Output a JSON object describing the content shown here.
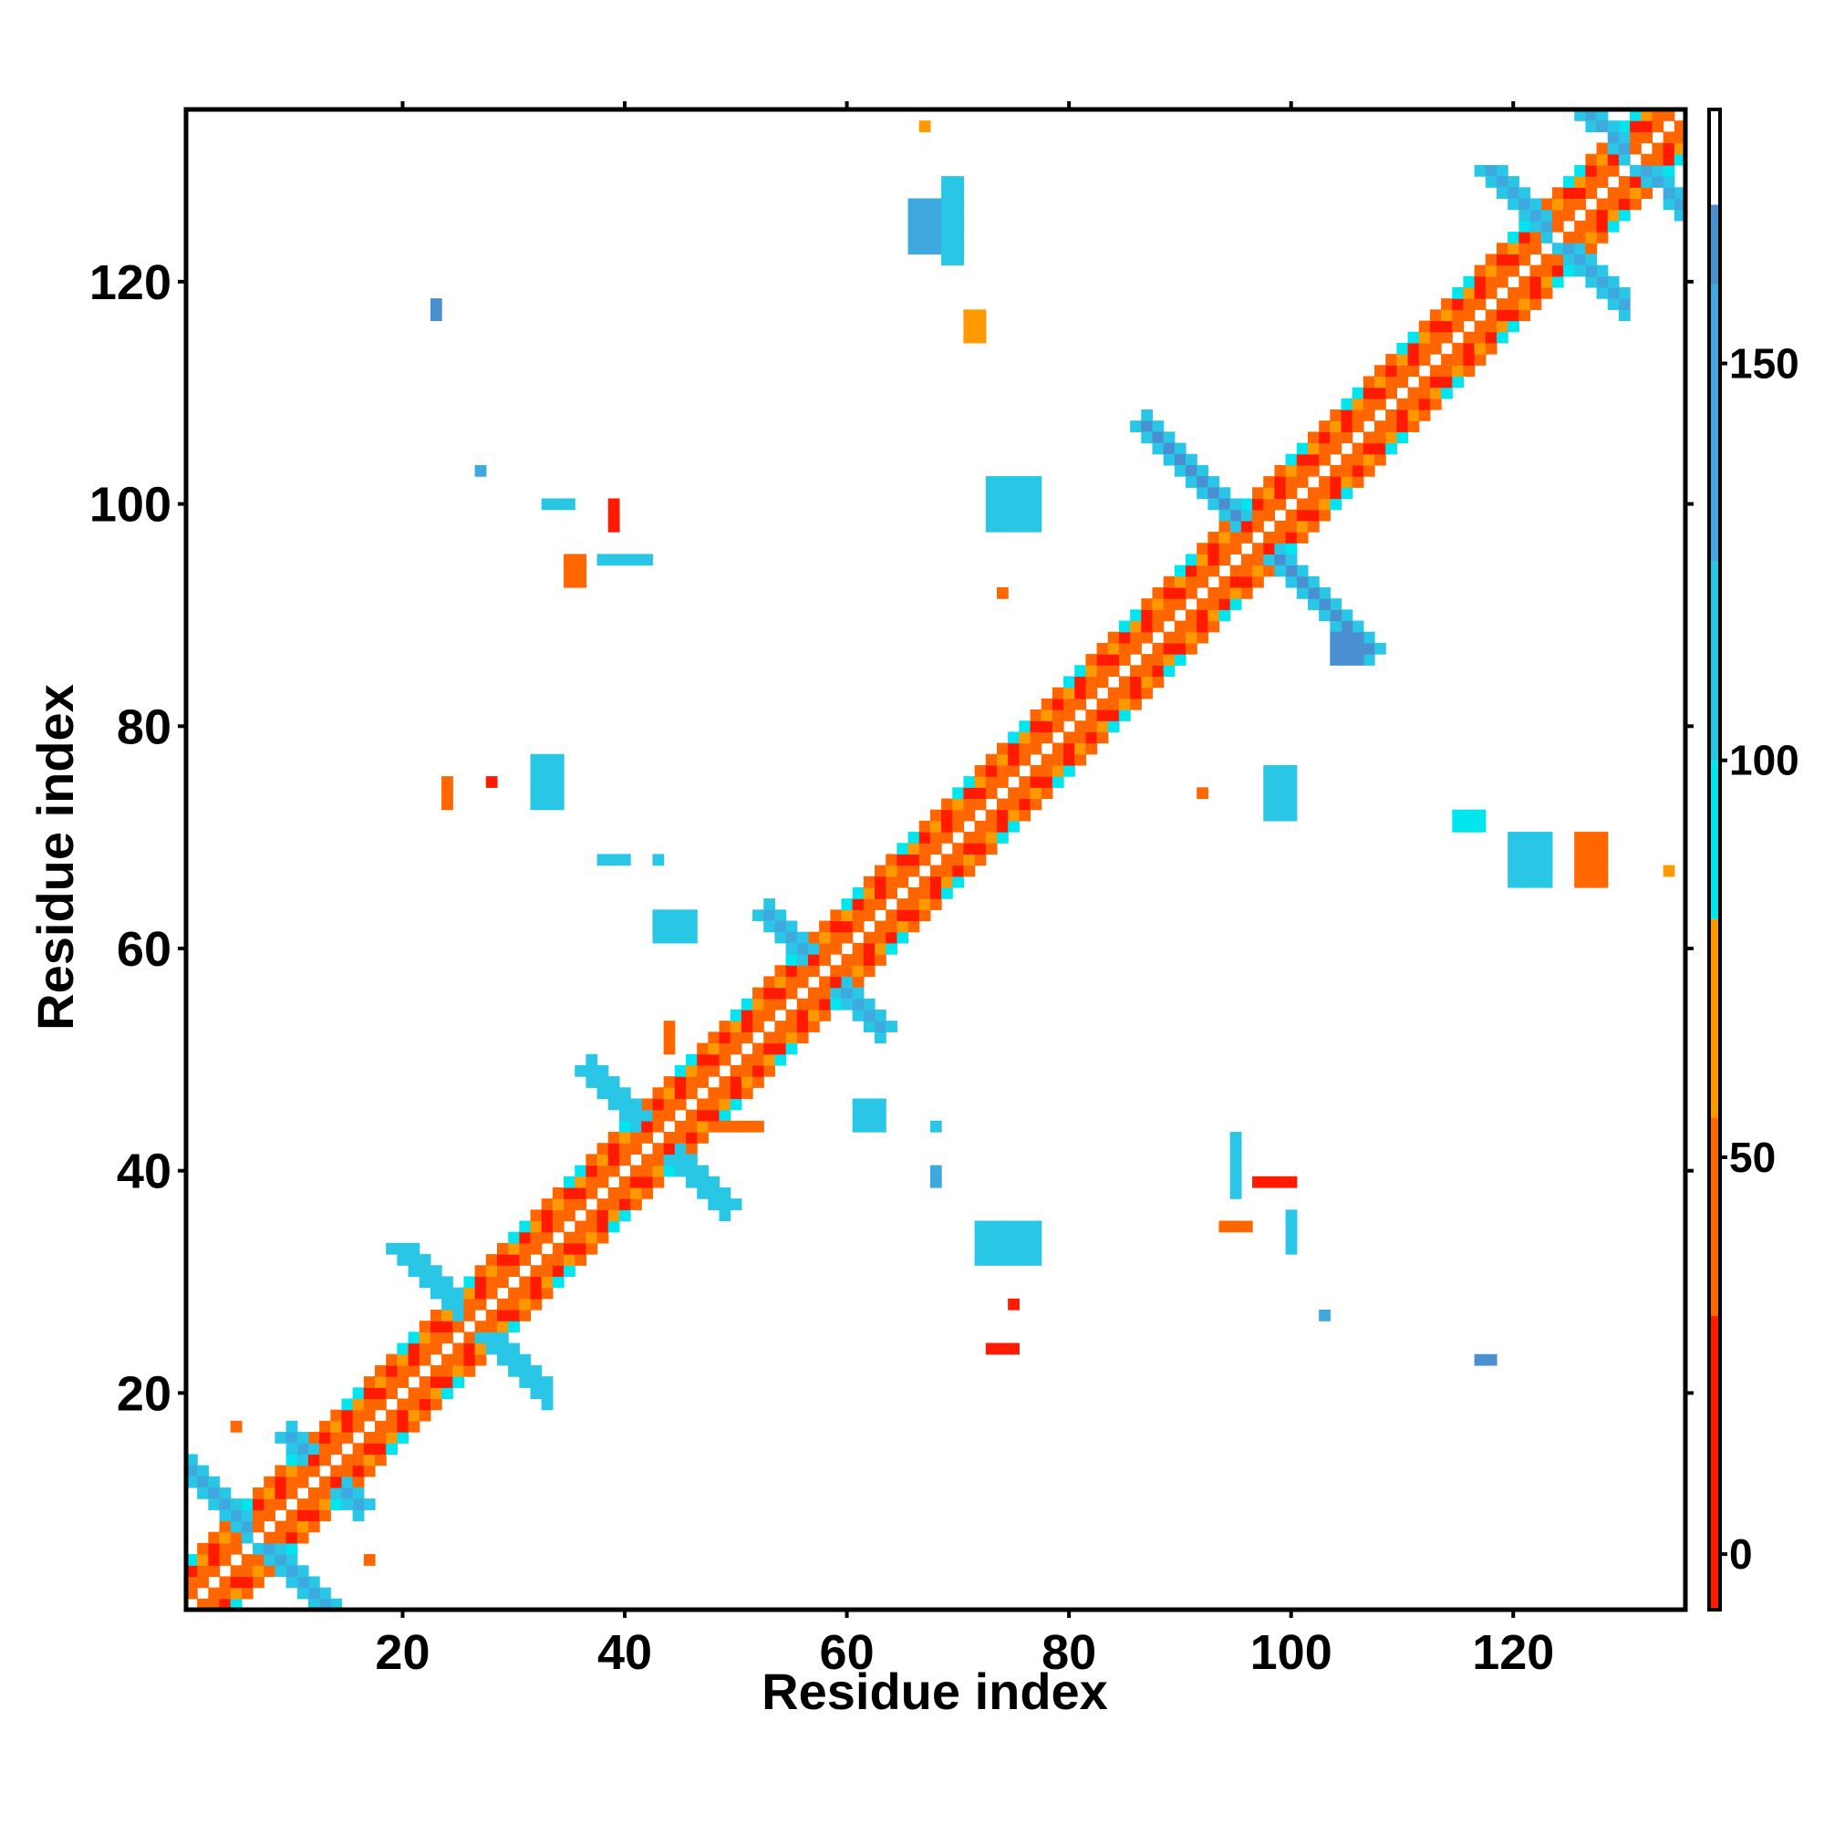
{
  "chart_data": {
    "type": "heatmap",
    "title": "",
    "xlabel": "Residue index",
    "ylabel": "Residue index",
    "xlim": [
      1,
      135
    ],
    "ylim": [
      1,
      135
    ],
    "x_ticks": [
      20,
      40,
      60,
      80,
      100,
      120
    ],
    "y_ticks": [
      20,
      40,
      60,
      80,
      100,
      120
    ],
    "colorbar": {
      "range": [
        -7,
        182
      ],
      "ticks": [
        0,
        50,
        100,
        150
      ],
      "bands": [
        {
          "from": -7,
          "to": 30,
          "color": "#ff1a00"
        },
        {
          "from": 30,
          "to": 55,
          "color": "#ff6600"
        },
        {
          "from": 55,
          "to": 80,
          "color": "#ff9900"
        },
        {
          "from": 80,
          "to": 100,
          "color": "#00e5ee"
        },
        {
          "from": 100,
          "to": 125,
          "color": "#29c6e6"
        },
        {
          "from": 125,
          "to": 160,
          "color": "#3ea8df"
        },
        {
          "from": 160,
          "to": 170,
          "color": "#4a8fd0"
        },
        {
          "from": 170,
          "to": 182,
          "color": "#ffffff"
        }
      ]
    },
    "palette": {
      "red": "#ff1a00",
      "orange": "#ff6600",
      "amber": "#ff9900",
      "cyan": "#00e5ee",
      "sky": "#29c6e6",
      "blue": "#3ea8df",
      "steel": "#4a8fd0"
    },
    "features": {
      "diagonal": {
        "from": 1,
        "to": 135
      },
      "beta_crosses": [
        {
          "center": [
            6,
            8
          ],
          "arm": 6,
          "color": "blue"
        },
        {
          "center": [
            13,
            13
          ],
          "arm": 3,
          "color": "blue"
        },
        {
          "center": [
            26,
            27
          ],
          "arm": 6,
          "color": "sky"
        },
        {
          "center": [
            43,
            43
          ],
          "arm": 6,
          "color": "sky"
        },
        {
          "center": [
            58,
            58
          ],
          "arm": 5,
          "color": "blue"
        },
        {
          "center": [
            97,
            97
          ],
          "arm": 10,
          "color": "steel"
        },
        {
          "center": [
            123,
            125
          ],
          "arm": 5,
          "color": "blue"
        },
        {
          "center": [
            130,
            132
          ],
          "arm": 3,
          "color": "blue"
        }
      ],
      "patches": [
        {
          "x": [
            72,
            77
          ],
          "y": [
            32,
            35
          ],
          "color": "sky"
        },
        {
          "x": [
            73,
            75
          ],
          "y": [
            24,
            24
          ],
          "color": "red"
        },
        {
          "x": [
            75,
            75
          ],
          "y": [
            28,
            28
          ],
          "color": "red"
        },
        {
          "x": [
            68,
            68
          ],
          "y": [
            39,
            40
          ],
          "color": "blue"
        },
        {
          "x": [
            61,
            63
          ],
          "y": [
            44,
            46
          ],
          "color": "sky"
        },
        {
          "x": [
            68,
            68
          ],
          "y": [
            44,
            44
          ],
          "color": "sky"
        },
        {
          "x": [
            43,
            46
          ],
          "y": [
            61,
            63
          ],
          "color": "sky"
        },
        {
          "x": [
            38,
            40
          ],
          "y": [
            68,
            68
          ],
          "color": "sky"
        },
        {
          "x": [
            43,
            43
          ],
          "y": [
            68,
            68
          ],
          "color": "sky"
        },
        {
          "x": [
            32,
            34
          ],
          "y": [
            73,
            77
          ],
          "color": "sky"
        },
        {
          "x": [
            24,
            24
          ],
          "y": [
            73,
            75
          ],
          "color": "orange"
        },
        {
          "x": [
            28,
            28
          ],
          "y": [
            75,
            75
          ],
          "color": "red"
        },
        {
          "x": [
            98,
            100
          ],
          "y": [
            72,
            76
          ],
          "color": "sky"
        },
        {
          "x": [
            92,
            92
          ],
          "y": [
            74,
            74
          ],
          "color": "orange"
        },
        {
          "x": [
            94,
            96
          ],
          "y": [
            35,
            35
          ],
          "color": "orange"
        },
        {
          "x": [
            95,
            95
          ],
          "y": [
            38,
            43
          ],
          "color": "sky"
        },
        {
          "x": [
            97,
            100
          ],
          "y": [
            39,
            39
          ],
          "color": "red"
        },
        {
          "x": [
            100,
            100
          ],
          "y": [
            33,
            36
          ],
          "color": "sky"
        },
        {
          "x": [
            103,
            103
          ],
          "y": [
            27,
            27
          ],
          "color": "blue"
        },
        {
          "x": [
            117,
            118
          ],
          "y": [
            23,
            23
          ],
          "color": "steel"
        },
        {
          "x": [
            115,
            117
          ],
          "y": [
            71,
            72
          ],
          "color": "cyan"
        },
        {
          "x": [
            120,
            123
          ],
          "y": [
            66,
            70
          ],
          "color": "sky"
        },
        {
          "x": [
            126,
            128
          ],
          "y": [
            66,
            70
          ],
          "color": "orange"
        },
        {
          "x": [
            134,
            134
          ],
          "y": [
            67,
            67
          ],
          "color": "amber"
        },
        {
          "x": [
            35,
            36
          ],
          "y": [
            93,
            95
          ],
          "color": "orange"
        },
        {
          "x": [
            33,
            35
          ],
          "y": [
            100,
            100
          ],
          "color": "sky"
        },
        {
          "x": [
            38,
            42
          ],
          "y": [
            95,
            95
          ],
          "color": "sky"
        },
        {
          "x": [
            39,
            39
          ],
          "y": [
            98,
            100
          ],
          "color": "red"
        },
        {
          "x": [
            27,
            27
          ],
          "y": [
            103,
            103
          ],
          "color": "blue"
        },
        {
          "x": [
            73,
            77
          ],
          "y": [
            98,
            102
          ],
          "color": "sky"
        },
        {
          "x": [
            74,
            74
          ],
          "y": [
            92,
            92
          ],
          "color": "orange"
        },
        {
          "x": [
            23,
            23
          ],
          "y": [
            117,
            118
          ],
          "color": "steel"
        },
        {
          "x": [
            66,
            68
          ],
          "y": [
            123,
            127
          ],
          "color": "blue"
        },
        {
          "x": [
            69,
            70
          ],
          "y": [
            122,
            129
          ],
          "color": "sky"
        },
        {
          "x": [
            71,
            72
          ],
          "y": [
            115,
            117
          ],
          "color": "amber"
        },
        {
          "x": [
            67,
            67
          ],
          "y": [
            134,
            134
          ],
          "color": "amber"
        },
        {
          "x": [
            5,
            5
          ],
          "y": [
            17,
            17
          ],
          "color": "orange"
        },
        {
          "x": [
            17,
            17
          ],
          "y": [
            5,
            5
          ],
          "color": "orange"
        },
        {
          "x": [
            48,
            52
          ],
          "y": [
            44,
            44
          ],
          "color": "orange"
        },
        {
          "x": [
            44,
            44
          ],
          "y": [
            51,
            53
          ],
          "color": "orange"
        },
        {
          "x": [
            104,
            106
          ],
          "y": [
            86,
            88
          ],
          "color": "steel"
        }
      ]
    }
  }
}
